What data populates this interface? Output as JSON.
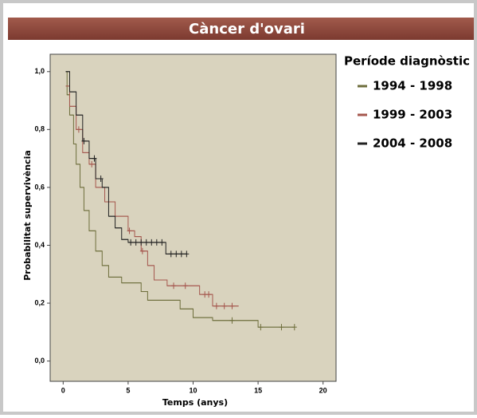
{
  "chart_data": {
    "type": "step",
    "title": "Càncer d'ovari",
    "x_label": "Temps (anys)",
    "y_label": "Probabilitat supervivència",
    "legend_title": "Període diagnòstic",
    "xlim": [
      -1,
      21
    ],
    "ylim": [
      -0.07,
      1.06
    ],
    "xticks": [
      0,
      5,
      10,
      15,
      20
    ],
    "yticks": [
      {
        "value": 0,
        "label": "0,0"
      },
      {
        "value": 0.2,
        "label": "0,2"
      },
      {
        "value": 0.4,
        "label": "0,4"
      },
      {
        "value": 0.6,
        "label": "0,6"
      },
      {
        "value": 0.8,
        "label": "0,8"
      },
      {
        "value": 1,
        "label": "1,0"
      }
    ],
    "series": [
      {
        "name": "1994 - 1998",
        "color": "#6e6e3c",
        "x": [
          0.2,
          0.3,
          0.5,
          0.8,
          1.0,
          1.3,
          1.6,
          2.0,
          2.5,
          3.0,
          3.5,
          4.5,
          6.0,
          6.5,
          9.0,
          10.0,
          11.5,
          15.0,
          17.8
        ],
        "values": [
          1.0,
          0.92,
          0.85,
          0.75,
          0.68,
          0.6,
          0.52,
          0.45,
          0.38,
          0.33,
          0.29,
          0.27,
          0.24,
          0.21,
          0.18,
          0.15,
          0.14,
          0.117,
          0.117
        ],
        "censored": [
          13.0,
          15.2,
          16.8,
          17.8
        ]
      },
      {
        "name": "1999 - 2003",
        "color": "#a5574e",
        "x": [
          0.2,
          0.5,
          1.0,
          1.5,
          2.0,
          2.5,
          3.2,
          4.0,
          5.0,
          5.5,
          6.0,
          6.5,
          7.0,
          8.0,
          10.5,
          11.5,
          13.5
        ],
        "values": [
          0.95,
          0.88,
          0.8,
          0.72,
          0.68,
          0.6,
          0.55,
          0.5,
          0.45,
          0.43,
          0.38,
          0.33,
          0.28,
          0.26,
          0.23,
          0.19,
          0.19
        ],
        "censored": [
          1.2,
          2.2,
          5.1,
          6.1,
          8.5,
          9.4,
          10.9,
          11.2,
          11.8,
          12.4,
          13.0
        ]
      },
      {
        "name": "2004 - 2008",
        "color": "#222222",
        "x": [
          0.2,
          0.5,
          1.0,
          1.5,
          2.0,
          2.5,
          3.0,
          3.5,
          4.0,
          4.5,
          5.0,
          7.9,
          9.5
        ],
        "values": [
          1.0,
          0.93,
          0.85,
          0.76,
          0.7,
          0.63,
          0.6,
          0.5,
          0.46,
          0.42,
          0.41,
          0.37,
          0.37
        ],
        "censored": [
          1.6,
          2.4,
          2.9,
          5.2,
          5.6,
          6.0,
          6.4,
          6.8,
          7.2,
          7.6,
          8.3,
          8.7,
          9.1,
          9.5
        ]
      }
    ]
  }
}
